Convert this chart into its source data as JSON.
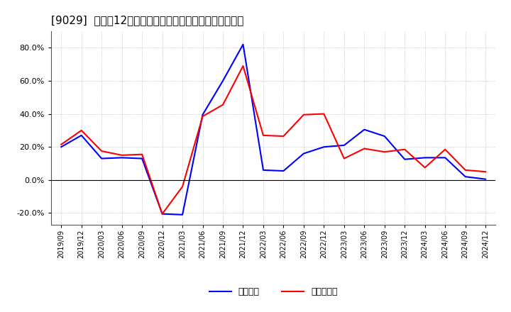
{
  "title": "[9029]  利益だ12か月移動合計の対前年同期増減率の推移",
  "ylim": [
    -0.27,
    0.9
  ],
  "yticks": [
    -0.2,
    0.0,
    0.2,
    0.4,
    0.6,
    0.8
  ],
  "legend_labels": [
    "経常利益",
    "当期純利益"
  ],
  "line_colors": [
    "#0000ff",
    "#ff0000"
  ],
  "background_color": "#ffffff",
  "plot_bg_color": "#ffffff",
  "grid_color": "#aaaaaa",
  "x_labels": [
    "2019/09",
    "2019/12",
    "2020/03",
    "2020/06",
    "2020/09",
    "2020/12",
    "2021/03",
    "2021/06",
    "2021/09",
    "2021/12",
    "2022/03",
    "2022/06",
    "2022/09",
    "2022/12",
    "2023/03",
    "2023/06",
    "2023/09",
    "2023/12",
    "2024/03",
    "2024/06",
    "2024/09",
    "2024/12"
  ],
  "series_operating": [
    0.2,
    0.27,
    0.13,
    0.135,
    0.13,
    -0.205,
    -0.21,
    0.395,
    0.6,
    0.82,
    0.06,
    0.055,
    0.16,
    0.2,
    0.21,
    0.305,
    0.265,
    0.125,
    0.135,
    0.135,
    0.02,
    0.005
  ],
  "series_net": [
    0.215,
    0.3,
    0.175,
    0.15,
    0.155,
    -0.205,
    -0.04,
    0.385,
    0.455,
    0.69,
    0.27,
    0.265,
    0.395,
    0.4,
    0.13,
    0.19,
    0.17,
    0.185,
    0.075,
    0.185,
    0.06,
    0.05
  ]
}
